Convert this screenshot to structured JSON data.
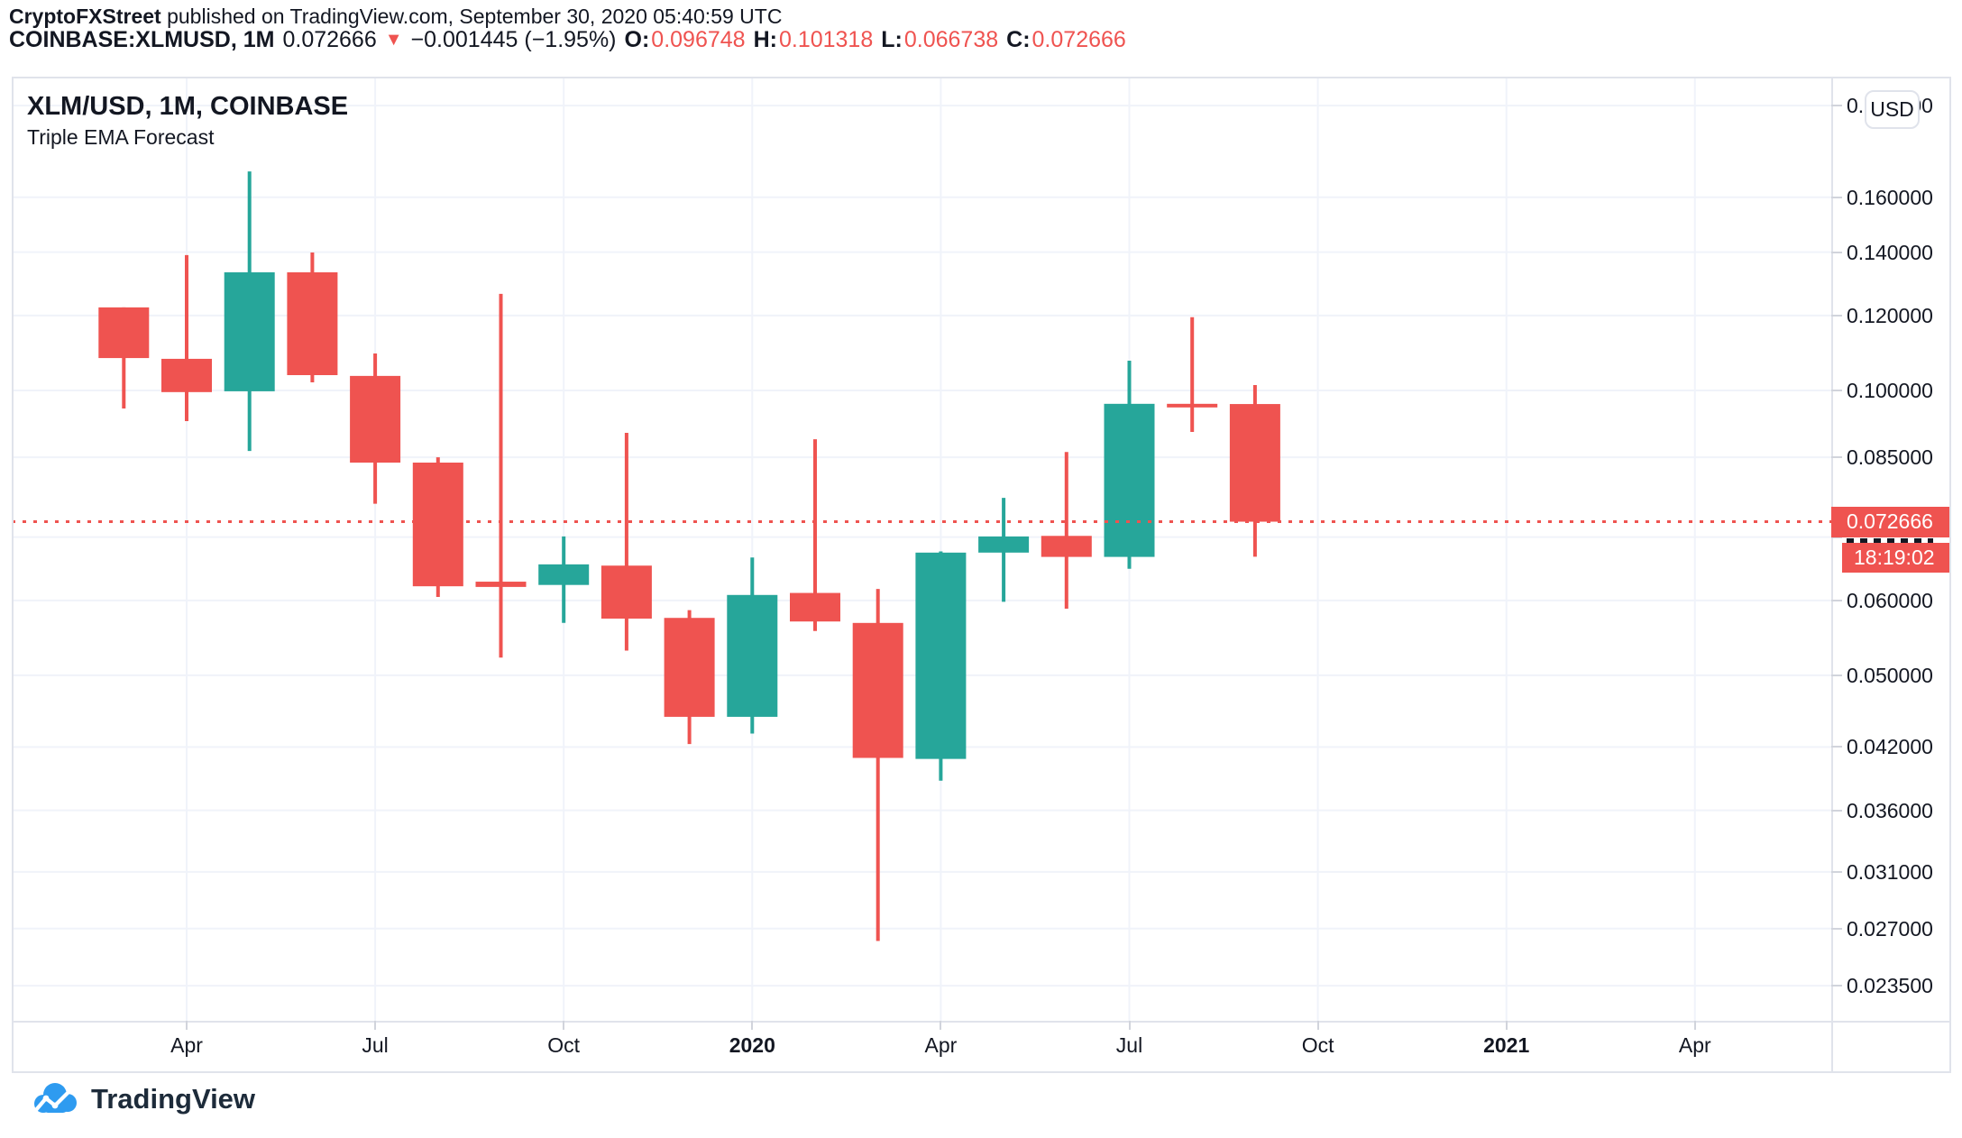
{
  "header": {
    "publisher": "CryptoFXStreet",
    "published_text": " published on TradingView.com, September 30, 2020 05:40:59 UTC",
    "symbol": "COINBASE:XLMUSD, 1M",
    "last_price": "0.072666",
    "direction_icon": "▼",
    "change": "−0.001445 (−1.95%)",
    "ohlc": [
      {
        "label": "O:",
        "value": "0.096748"
      },
      {
        "label": "H:",
        "value": "0.101318"
      },
      {
        "label": "L:",
        "value": "0.066738"
      },
      {
        "label": "C:",
        "value": "0.072666"
      }
    ]
  },
  "price_axis": {
    "currency_button": "USD"
  },
  "watermark": {
    "brand": "TradingView"
  },
  "chart_data": {
    "type": "candlestick",
    "title": "XLM/USD, 1M, COINBASE",
    "subtitle": "Triple EMA Forecast",
    "exchange": "COINBASE",
    "symbol": "XLM/USD",
    "interval": "1M",
    "scale_y": "log",
    "ylim": [
      0.0216,
      0.2146
    ],
    "grid": true,
    "up_color": "#26a69a",
    "down_color": "#ef5350",
    "grid_color": "#f0f3fa",
    "last_price": 0.072666,
    "last_price_label": "0.072666",
    "countdown": "18:19:02",
    "price_ticks": [
      {
        "label": "0.200000",
        "value": 0.2
      },
      {
        "label": "0.160000",
        "value": 0.16
      },
      {
        "label": "0.140000",
        "value": 0.14
      },
      {
        "label": "0.120000",
        "value": 0.12
      },
      {
        "label": "0.100000",
        "value": 0.1
      },
      {
        "label": "0.085000",
        "value": 0.085
      },
      {
        "label": "0.070000",
        "value": 0.07,
        "hidden": true
      },
      {
        "label": "0.060000",
        "value": 0.06
      },
      {
        "label": "0.050000",
        "value": 0.05
      },
      {
        "label": "0.042000",
        "value": 0.042
      },
      {
        "label": "0.036000",
        "value": 0.036
      },
      {
        "label": "0.031000",
        "value": 0.031
      },
      {
        "label": "0.027000",
        "value": 0.027
      },
      {
        "label": "0.023500",
        "value": 0.0235
      }
    ],
    "time_ticks": [
      {
        "label": "Apr",
        "offset": 1,
        "bold": false
      },
      {
        "label": "Jul",
        "offset": 4,
        "bold": false
      },
      {
        "label": "Oct",
        "offset": 7,
        "bold": false
      },
      {
        "label": "2020",
        "offset": 10,
        "bold": true
      },
      {
        "label": "Apr",
        "offset": 13,
        "bold": false
      },
      {
        "label": "Jul",
        "offset": 16,
        "bold": false
      },
      {
        "label": "Oct",
        "offset": 19,
        "bold": false
      },
      {
        "label": "2021",
        "offset": 22,
        "bold": true
      },
      {
        "label": "Apr",
        "offset": 25,
        "bold": false
      }
    ],
    "candles": [
      {
        "t": "Mar 2019",
        "o": 0.1224,
        "h": 0.1224,
        "l": 0.0957,
        "c": 0.1082
      },
      {
        "t": "Apr 2019",
        "o": 0.108,
        "h": 0.139,
        "l": 0.0928,
        "c": 0.0996
      },
      {
        "t": "May 2019",
        "o": 0.0998,
        "h": 0.1704,
        "l": 0.0863,
        "c": 0.1333
      },
      {
        "t": "Jun 2019",
        "o": 0.1333,
        "h": 0.1399,
        "l": 0.102,
        "c": 0.1038
      },
      {
        "t": "Jul 2019",
        "o": 0.1036,
        "h": 0.1094,
        "l": 0.0759,
        "c": 0.0839
      },
      {
        "t": "Aug 2019",
        "o": 0.0839,
        "h": 0.085,
        "l": 0.0605,
        "c": 0.0621
      },
      {
        "t": "Sep 2019",
        "o": 0.0628,
        "h": 0.1265,
        "l": 0.0522,
        "c": 0.062
      },
      {
        "t": "Oct 2019",
        "o": 0.0623,
        "h": 0.0701,
        "l": 0.0568,
        "c": 0.0655
      },
      {
        "t": "Nov 2019",
        "o": 0.0653,
        "h": 0.0902,
        "l": 0.0531,
        "c": 0.0574
      },
      {
        "t": "Dec 2019",
        "o": 0.0575,
        "h": 0.0586,
        "l": 0.0423,
        "c": 0.0452
      },
      {
        "t": "Jan 2020",
        "o": 0.0452,
        "h": 0.0666,
        "l": 0.0434,
        "c": 0.0608
      },
      {
        "t": "Feb 2020",
        "o": 0.0611,
        "h": 0.0888,
        "l": 0.0557,
        "c": 0.057
      },
      {
        "t": "Mar 2020",
        "o": 0.0568,
        "h": 0.0617,
        "l": 0.0262,
        "c": 0.0409
      },
      {
        "t": "Apr 2020",
        "o": 0.0408,
        "h": 0.0676,
        "l": 0.0387,
        "c": 0.0674
      },
      {
        "t": "May 2020",
        "o": 0.0674,
        "h": 0.077,
        "l": 0.0598,
        "c": 0.0701
      },
      {
        "t": "Jun 2020",
        "o": 0.0702,
        "h": 0.0861,
        "l": 0.0588,
        "c": 0.0667
      },
      {
        "t": "Jul 2020",
        "o": 0.0667,
        "h": 0.1075,
        "l": 0.0648,
        "c": 0.0968
      },
      {
        "t": "Aug 2020",
        "o": 0.0968,
        "h": 0.1195,
        "l": 0.0904,
        "c": 0.0965
      },
      {
        "t": "Sep 2020",
        "o": 0.096748,
        "h": 0.101318,
        "l": 0.066738,
        "c": 0.072666
      }
    ]
  }
}
